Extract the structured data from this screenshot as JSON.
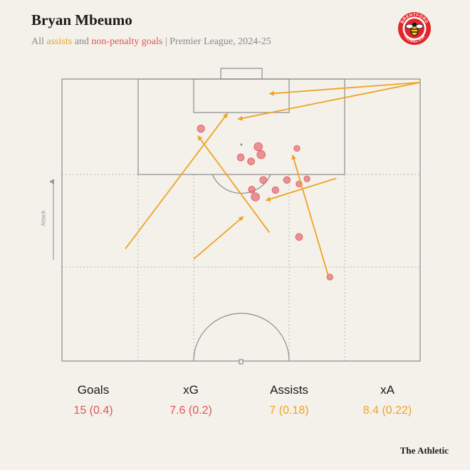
{
  "header": {
    "title": "Bryan Mbeumo",
    "subtitle_prefix": "All ",
    "subtitle_assists": "assists",
    "subtitle_and": " and ",
    "subtitle_goals": "non-penalty goals",
    "subtitle_suffix": " | Premier League, 2024-25"
  },
  "badge": {
    "icon": "brentford-crest-icon",
    "text": "BRENTFORD FOOTBALL CLUB",
    "colors": {
      "red": "#e0262c",
      "white": "#ffffff",
      "black": "#1a1a1a"
    }
  },
  "pitch": {
    "direction_label": "Attack"
  },
  "colors": {
    "assist": "#f0a323",
    "goal": "#e2545b",
    "pitch_line": "#8c8c8c",
    "grid": "#b8b8b8",
    "background": "#f3f1ea"
  },
  "stats": [
    {
      "label": "Goals",
      "value": "15 (0.4)",
      "color": "#e2545b"
    },
    {
      "label": "xG",
      "value": "7.6 (0.2)",
      "color": "#e2545b"
    },
    {
      "label": "Assists",
      "value": "7 (0.18)",
      "color": "#f0a323"
    },
    {
      "label": "xA",
      "value": "8.4 (0.22)",
      "color": "#f0a323"
    }
  ],
  "brand": "The Athletic",
  "chart_data": {
    "type": "scatter",
    "pitch_units": {
      "x_range": [
        0,
        100
      ],
      "y_range": [
        0,
        50
      ],
      "note": "y measured from attacking goal line"
    },
    "goals": [
      {
        "x": 38.8,
        "y": 8.8,
        "xg": 0.08
      },
      {
        "x": 54.8,
        "y": 12.0,
        "xg": 0.12
      },
      {
        "x": 55.6,
        "y": 13.4,
        "xg": 0.12
      },
      {
        "x": 49.9,
        "y": 13.9,
        "xg": 0.07
      },
      {
        "x": 52.8,
        "y": 14.6,
        "xg": 0.07
      },
      {
        "x": 65.6,
        "y": 12.3,
        "xg": 0.04
      },
      {
        "x": 56.2,
        "y": 17.9,
        "xg": 0.07
      },
      {
        "x": 53.0,
        "y": 19.6,
        "xg": 0.06
      },
      {
        "x": 59.6,
        "y": 19.7,
        "xg": 0.06
      },
      {
        "x": 62.8,
        "y": 17.9,
        "xg": 0.06
      },
      {
        "x": 66.2,
        "y": 18.6,
        "xg": 0.04
      },
      {
        "x": 68.4,
        "y": 17.7,
        "xg": 0.04
      },
      {
        "x": 54.0,
        "y": 20.9,
        "xg": 0.12
      },
      {
        "x": 66.2,
        "y": 28.0,
        "xg": 0.07
      },
      {
        "x": 74.8,
        "y": 35.1,
        "xg": 0.04
      }
    ],
    "assists": [
      {
        "from": [
          100.0,
          0.6
        ],
        "to": [
          58.0,
          2.6
        ]
      },
      {
        "from": [
          100.0,
          0.6
        ],
        "to": [
          49.2,
          7.1
        ]
      },
      {
        "from": [
          17.7,
          30.1
        ],
        "to": [
          46.2,
          6.1
        ]
      },
      {
        "from": [
          57.9,
          27.2
        ],
        "to": [
          38.0,
          10.1
        ]
      },
      {
        "from": [
          36.8,
          31.9
        ],
        "to": [
          50.6,
          24.4
        ]
      },
      {
        "from": [
          74.4,
          35.0
        ],
        "to": [
          64.4,
          13.5
        ]
      },
      {
        "from": [
          76.6,
          17.6
        ],
        "to": [
          57.0,
          21.5
        ]
      }
    ]
  }
}
